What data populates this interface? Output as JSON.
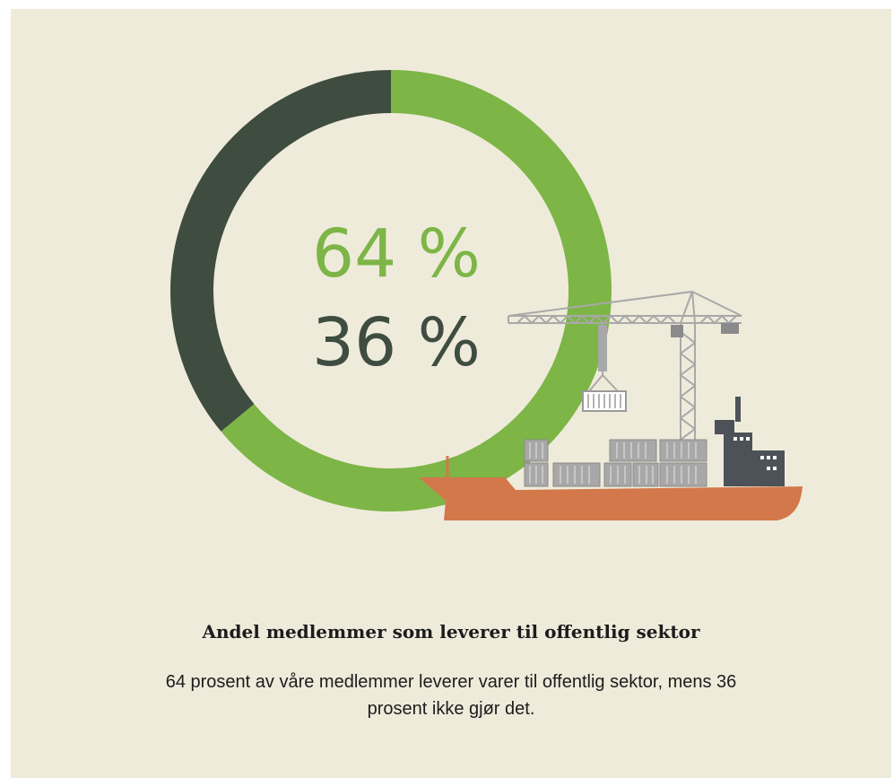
{
  "chart_data": {
    "type": "pie",
    "variant": "donut",
    "slices": [
      {
        "name": "",
        "value": 64,
        "label": "64 %",
        "color": "#7db547"
      },
      {
        "name": "",
        "value": 36,
        "label": "36 %",
        "color": "#3e4d40"
      }
    ],
    "title": "Andel medlemmer som leverer til offentlig sektor"
  },
  "caption": {
    "title": "Andel medlemmer som leverer til offentlig sektor",
    "text": "64 prosent av våre medlemmer leverer varer til offentlig sektor, mens 36 prosent ikke gjør det."
  },
  "colors": {
    "background": "#efebdb",
    "accent_green": "#7db547",
    "dark_green": "#3e4d40",
    "ship_hull": "#d3784a",
    "ship_tower": "#4c5258",
    "crane": "#a8a8a8"
  },
  "illustration": {
    "icon": "cargo-ship-with-crane-icon"
  }
}
